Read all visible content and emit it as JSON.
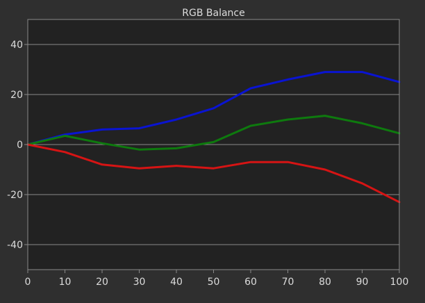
{
  "chart_data": {
    "type": "line",
    "title": "RGB Balance",
    "xlabel": "",
    "ylabel": "",
    "xlim": [
      0,
      100
    ],
    "ylim": [
      -50,
      50
    ],
    "x": [
      0,
      10,
      20,
      30,
      40,
      50,
      60,
      70,
      80,
      90,
      100
    ],
    "x_ticks": [
      0,
      10,
      20,
      30,
      40,
      50,
      60,
      70,
      80,
      90,
      100
    ],
    "y_ticks": [
      -40,
      -20,
      0,
      20,
      40
    ],
    "grid": "horizontal",
    "legend": "none",
    "series": [
      {
        "color": "#0a14d2",
        "values": [
          0,
          4,
          6,
          6.5,
          10,
          14.5,
          22.5,
          26,
          29,
          29,
          25
        ]
      },
      {
        "color": "#0e7a0e",
        "values": [
          0,
          3.5,
          0.5,
          -2,
          -1.5,
          1,
          7.5,
          10,
          11.5,
          8.5,
          4.5
        ]
      },
      {
        "color": "#d61414",
        "values": [
          0,
          -3,
          -8,
          -9.5,
          -8.5,
          -9.5,
          -7,
          -7,
          -10,
          -15.5,
          -23
        ]
      }
    ],
    "colors": {
      "background": "#2f2f2f",
      "plot_area": "#222222",
      "grid": "#8a8a8a",
      "text": "#dcdcdc"
    }
  }
}
